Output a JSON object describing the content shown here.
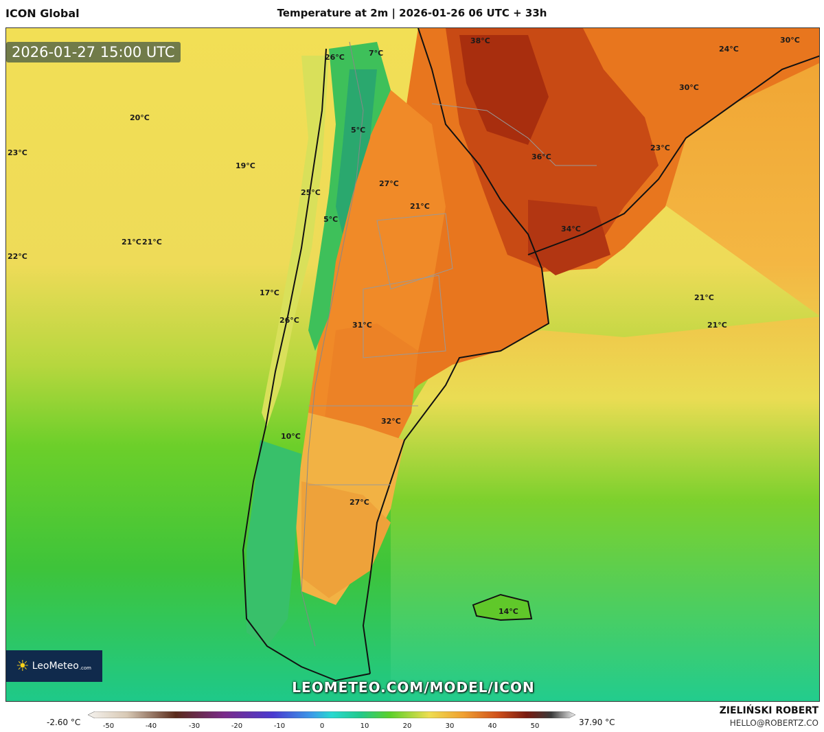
{
  "header": {
    "model": "ICON Global",
    "title": "Temperature at 2m | 2026-01-26 06 UTC + 33h"
  },
  "map": {
    "timestamp": "2026-01-27 15:00 UTC",
    "logo_text": "LeoMeteo",
    "logo_suffix": ".com",
    "url": "LEOMETEO.COM/MODEL/ICON",
    "labels": [
      {
        "text": "26°C"
      },
      {
        "text": "7°C"
      },
      {
        "text": "38°C"
      },
      {
        "text": "24°C"
      },
      {
        "text": "30°C"
      },
      {
        "text": "30°C"
      },
      {
        "text": "20°C"
      },
      {
        "text": "5°C"
      },
      {
        "text": "23°C"
      },
      {
        "text": "19°C"
      },
      {
        "text": "36°C"
      },
      {
        "text": "23°C"
      },
      {
        "text": "27°C"
      },
      {
        "text": "25°C"
      },
      {
        "text": "21°C"
      },
      {
        "text": "5°C"
      },
      {
        "text": "34°C"
      },
      {
        "text": "21°C"
      },
      {
        "text": "21°C"
      },
      {
        "text": "22°C"
      },
      {
        "text": "17°C"
      },
      {
        "text": "21°C"
      },
      {
        "text": "26°C"
      },
      {
        "text": "31°C"
      },
      {
        "text": "21°C"
      },
      {
        "text": "32°C"
      },
      {
        "text": "10°C"
      },
      {
        "text": "27°C"
      },
      {
        "text": "14°C"
      }
    ]
  },
  "legend": {
    "min": "-2.60 °C",
    "max": "37.90 °C",
    "ticks": [
      "-50",
      "-40",
      "-30",
      "-20",
      "-10",
      "0",
      "10",
      "20",
      "30",
      "40",
      "50"
    ]
  },
  "credit": {
    "name": "ZIELIŃSKI ROBERT",
    "email": "HELLO@ROBERTZ.CO"
  }
}
